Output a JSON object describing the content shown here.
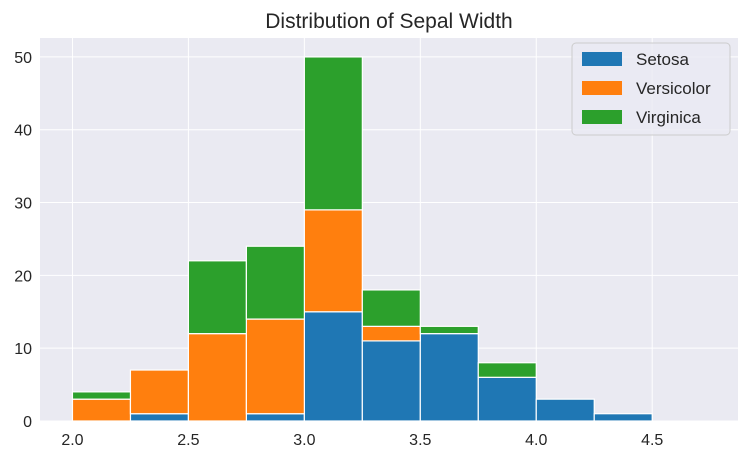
{
  "chart_data": {
    "type": "bar",
    "stacked": true,
    "title": "Distribution of Sepal Width",
    "xlabel": "",
    "ylabel": "",
    "bin_edges": [
      2.0,
      2.25,
      2.5,
      2.75,
      3.0,
      3.25,
      3.5,
      3.75,
      4.0,
      4.25,
      4.5,
      4.75
    ],
    "series": [
      {
        "name": "Setosa",
        "color": "#1f77b4",
        "values": [
          0,
          1,
          0,
          1,
          15,
          11,
          12,
          6,
          3,
          1,
          0
        ]
      },
      {
        "name": "Versicolor",
        "color": "#ff7f0e",
        "values": [
          3,
          6,
          12,
          13,
          14,
          2,
          0,
          0,
          0,
          0,
          0
        ]
      },
      {
        "name": "Virginica",
        "color": "#2ca02c",
        "values": [
          1,
          0,
          10,
          10,
          21,
          5,
          1,
          2,
          0,
          0,
          0
        ]
      }
    ],
    "xlim": [
      1.86,
      4.87
    ],
    "ylim": [
      0,
      52.6
    ],
    "xticks": [
      "2.0",
      "2.5",
      "3.0",
      "3.5",
      "4.0",
      "4.5"
    ],
    "yticks": [
      "0",
      "10",
      "20",
      "30",
      "40",
      "50"
    ],
    "grid": true,
    "legend_position": "top-right",
    "background": "#eaeaf2"
  }
}
